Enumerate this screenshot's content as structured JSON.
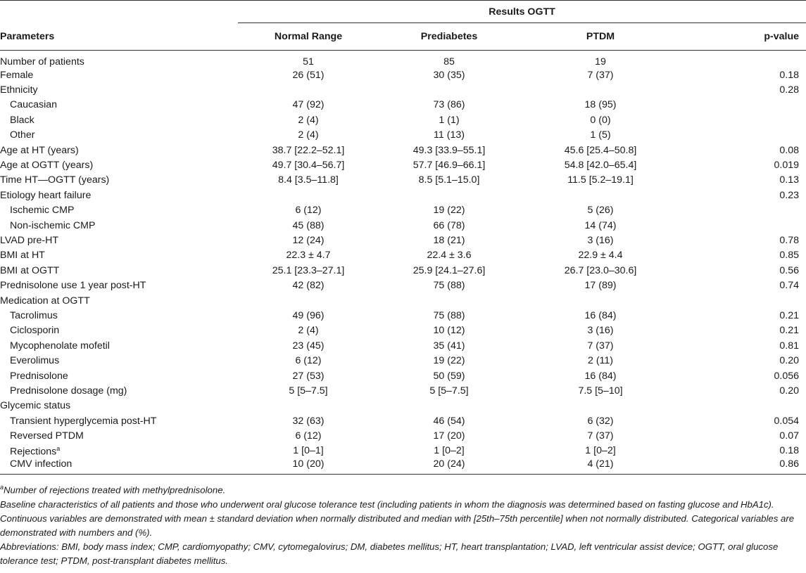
{
  "table": {
    "group_header": "Results OGTT",
    "columns": {
      "parameters": "Parameters",
      "normal": "Normal Range",
      "prediabetes": "Prediabetes",
      "ptdm": "PTDM",
      "pvalue": "p-value"
    },
    "rows": [
      {
        "label": "Number of patients",
        "sup": "",
        "indent": false,
        "normal": "51",
        "prediabetes": "85",
        "ptdm": "19",
        "p": ""
      },
      {
        "label": "Female",
        "sup": "",
        "indent": false,
        "normal": "26 (51)",
        "prediabetes": "30 (35)",
        "ptdm": "7 (37)",
        "p": "0.18"
      },
      {
        "label": "Ethnicity",
        "sup": "",
        "indent": false,
        "normal": "",
        "prediabetes": "",
        "ptdm": "",
        "p": "0.28"
      },
      {
        "label": "Caucasian",
        "sup": "",
        "indent": true,
        "normal": "47 (92)",
        "prediabetes": "73 (86)",
        "ptdm": "18 (95)",
        "p": ""
      },
      {
        "label": "Black",
        "sup": "",
        "indent": true,
        "normal": "2 (4)",
        "prediabetes": "1 (1)",
        "ptdm": "0 (0)",
        "p": ""
      },
      {
        "label": "Other",
        "sup": "",
        "indent": true,
        "normal": "2 (4)",
        "prediabetes": "11 (13)",
        "ptdm": "1 (5)",
        "p": ""
      },
      {
        "label": "Age at HT (years)",
        "sup": "",
        "indent": false,
        "normal": "38.7 [22.2–52.1]",
        "prediabetes": "49.3 [33.9–55.1]",
        "ptdm": "45.6 [25.4–50.8]",
        "p": "0.08"
      },
      {
        "label": "Age at OGTT (years)",
        "sup": "",
        "indent": false,
        "normal": "49.7 [30.4–56.7]",
        "prediabetes": "57.7 [46.9–66.1]",
        "ptdm": "54.8 [42.0–65.4]",
        "p": "0.019"
      },
      {
        "label": "Time HT—OGTT (years)",
        "sup": "",
        "indent": false,
        "normal": "8.4 [3.5–11.8]",
        "prediabetes": "8.5 [5.1–15.0]",
        "ptdm": "11.5 [5.2–19.1]",
        "p": "0.13"
      },
      {
        "label": "Etiology heart failure",
        "sup": "",
        "indent": false,
        "normal": "",
        "prediabetes": "",
        "ptdm": "",
        "p": "0.23"
      },
      {
        "label": "Ischemic CMP",
        "sup": "",
        "indent": true,
        "normal": "6 (12)",
        "prediabetes": "19 (22)",
        "ptdm": "5 (26)",
        "p": ""
      },
      {
        "label": "Non-ischemic CMP",
        "sup": "",
        "indent": true,
        "normal": "45 (88)",
        "prediabetes": "66 (78)",
        "ptdm": "14 (74)",
        "p": ""
      },
      {
        "label": "LVAD pre-HT",
        "sup": "",
        "indent": false,
        "normal": "12 (24)",
        "prediabetes": "18 (21)",
        "ptdm": "3 (16)",
        "p": "0.78"
      },
      {
        "label": "BMI at HT",
        "sup": "",
        "indent": false,
        "normal": "22.3 ± 4.7",
        "prediabetes": "22.4 ± 3.6",
        "ptdm": "22.9 ± 4.4",
        "p": "0.85"
      },
      {
        "label": "BMI at OGTT",
        "sup": "",
        "indent": false,
        "normal": "25.1 [23.3–27.1]",
        "prediabetes": "25.9 [24.1–27.6]",
        "ptdm": "26.7 [23.0–30.6]",
        "p": "0.56"
      },
      {
        "label": "Prednisolone use 1 year post-HT",
        "sup": "",
        "indent": false,
        "normal": "42 (82)",
        "prediabetes": "75 (88)",
        "ptdm": "17 (89)",
        "p": "0.74"
      },
      {
        "label": "Medication at OGTT",
        "sup": "",
        "indent": false,
        "normal": "",
        "prediabetes": "",
        "ptdm": "",
        "p": ""
      },
      {
        "label": "Tacrolimus",
        "sup": "",
        "indent": true,
        "normal": "49 (96)",
        "prediabetes": "75 (88)",
        "ptdm": "16 (84)",
        "p": "0.21"
      },
      {
        "label": "Ciclosporin",
        "sup": "",
        "indent": true,
        "normal": "2 (4)",
        "prediabetes": "10 (12)",
        "ptdm": "3 (16)",
        "p": "0.21"
      },
      {
        "label": "Mycophenolate mofetil",
        "sup": "",
        "indent": true,
        "normal": "23 (45)",
        "prediabetes": "35 (41)",
        "ptdm": "7 (37)",
        "p": "0.81"
      },
      {
        "label": "Everolimus",
        "sup": "",
        "indent": true,
        "normal": "6 (12)",
        "prediabetes": "19 (22)",
        "ptdm": "2 (11)",
        "p": "0.20"
      },
      {
        "label": "Prednisolone",
        "sup": "",
        "indent": true,
        "normal": "27 (53)",
        "prediabetes": "50 (59)",
        "ptdm": "16 (84)",
        "p": "0.056"
      },
      {
        "label": "Prednisolone dosage (mg)",
        "sup": "",
        "indent": true,
        "normal": "5 [5–7.5]",
        "prediabetes": "5 [5–7.5]",
        "ptdm": "7.5 [5–10]",
        "p": "0.20"
      },
      {
        "label": "Glycemic status",
        "sup": "",
        "indent": false,
        "normal": "",
        "prediabetes": "",
        "ptdm": "",
        "p": ""
      },
      {
        "label": "Transient hyperglycemia post-HT",
        "sup": "",
        "indent": true,
        "normal": "32 (63)",
        "prediabetes": "46 (54)",
        "ptdm": "6 (32)",
        "p": "0.054"
      },
      {
        "label": "Reversed PTDM",
        "sup": "",
        "indent": true,
        "normal": "6 (12)",
        "prediabetes": "17 (20)",
        "ptdm": "7 (37)",
        "p": "0.07"
      },
      {
        "label": "Rejections",
        "sup": "a",
        "indent": true,
        "normal": "1 [0–1]",
        "prediabetes": "1 [0–2]",
        "ptdm": "1 [0–2]",
        "p": "0.18"
      },
      {
        "label": "CMV infection",
        "sup": "",
        "indent": true,
        "normal": "10 (20)",
        "prediabetes": "20 (24)",
        "ptdm": "4 (21)",
        "p": "0.86"
      }
    ]
  },
  "footnotes": {
    "a_mark": "a",
    "a_text": "Number of rejections treated with methylprednisolone.",
    "baseline": "Baseline characteristics of all patients and those who underwent oral glucose tolerance test (including patients in whom the diagnosis was determined based on fasting glucose and HbA1c). Continuous variables are demonstrated with mean ± standard deviation when normally distributed and median with [25th–75th percentile] when not normally distributed. Categorical variables are demonstrated with numbers and (%).",
    "abbreviations": "Abbreviations: BMI, body mass index; CMP, cardiomyopathy; CMV, cytomegalovirus; DM, diabetes mellitus; HT, heart transplantation; LVAD, left ventricular assist device; OGTT, oral glucose tolerance test; PTDM, post-transplant diabetes mellitus."
  }
}
